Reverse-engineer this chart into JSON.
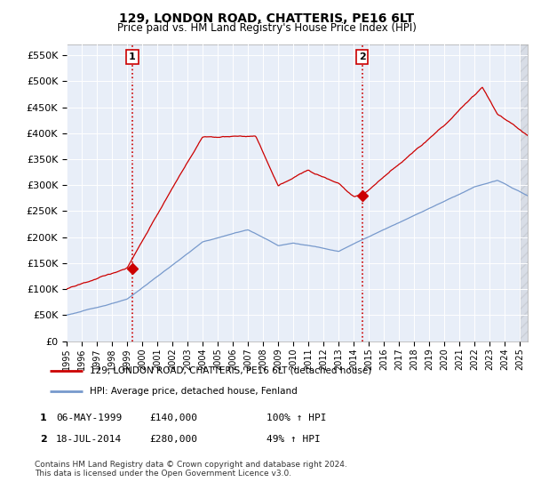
{
  "title": "129, LONDON ROAD, CHATTERIS, PE16 6LT",
  "subtitle": "Price paid vs. HM Land Registry's House Price Index (HPI)",
  "legend_line1": "129, LONDON ROAD, CHATTERIS, PE16 6LT (detached house)",
  "legend_line2": "HPI: Average price, detached house, Fenland",
  "table_row1": [
    "1",
    "06-MAY-1999",
    "£140,000",
    "100% ↑ HPI"
  ],
  "table_row2": [
    "2",
    "18-JUL-2014",
    "£280,000",
    "49% ↑ HPI"
  ],
  "footnote": "Contains HM Land Registry data © Crown copyright and database right 2024.\nThis data is licensed under the Open Government Licence v3.0.",
  "red_color": "#cc0000",
  "blue_color": "#7799cc",
  "vline_color": "#cc0000",
  "chart_bg": "#e8eef8",
  "grid_color": "#ffffff",
  "ylim": [
    0,
    570000
  ],
  "yticks": [
    0,
    50000,
    100000,
    150000,
    200000,
    250000,
    300000,
    350000,
    400000,
    450000,
    500000,
    550000
  ],
  "sale1_x": 1999.35,
  "sale1_y": 140000,
  "sale2_x": 2014.54,
  "sale2_y": 280000,
  "vline1_x": 1999.35,
  "vline2_x": 2014.54,
  "xmin": 1995,
  "xmax": 2025.5
}
